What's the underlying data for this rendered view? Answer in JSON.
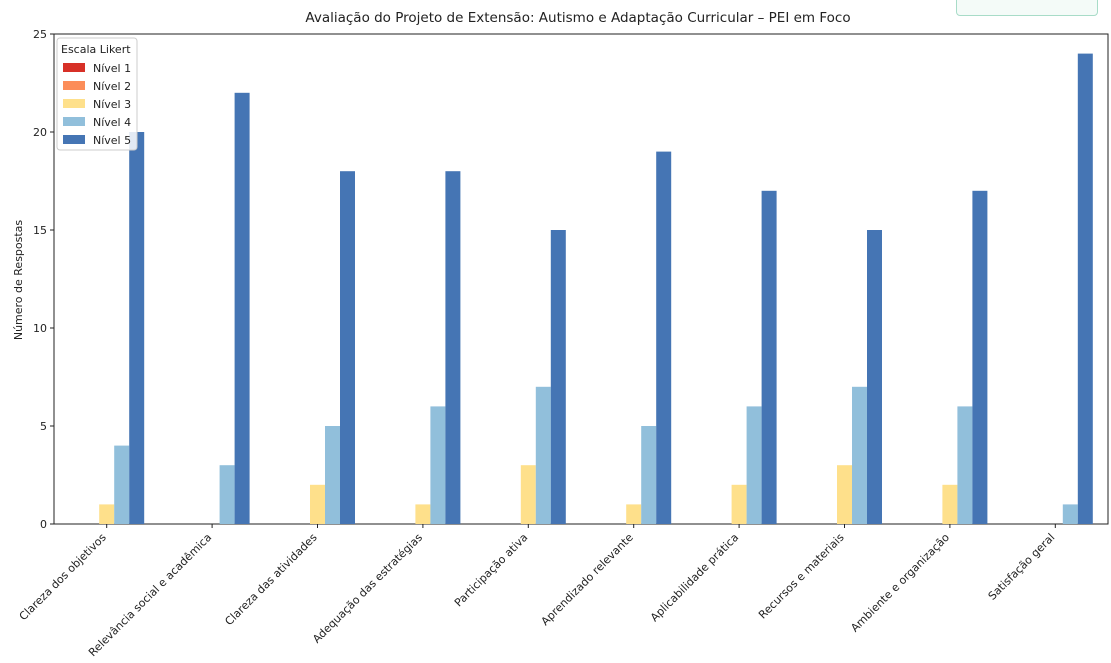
{
  "chart_data": {
    "type": "bar",
    "title": "Avaliação do Projeto de Extensão: Autismo e Adaptação Curricular – PEI em Foco",
    "xlabel": "",
    "ylabel": "Número de Respostas",
    "ylim": [
      0,
      25
    ],
    "yticks": [
      0,
      5,
      10,
      15,
      20,
      25
    ],
    "grid": false,
    "legend_title": "Escala Likert",
    "legend_position": "top-left",
    "categories": [
      "Clareza dos objetivos",
      "Relevância social e acadêmica",
      "Clareza das atividades",
      "Adequação das estratégias",
      "Participação ativa",
      "Aprendizado relevante",
      "Aplicabilidade prática",
      "Recursos e materiais",
      "Ambiente e organização",
      "Satisfação geral"
    ],
    "series": [
      {
        "name": "Nível 1",
        "color": "#d73027",
        "values": [
          0,
          0,
          0,
          0,
          0,
          0,
          0,
          0,
          0,
          0
        ]
      },
      {
        "name": "Nível 2",
        "color": "#fc8d59",
        "values": [
          0,
          0,
          0,
          0,
          0,
          0,
          0,
          0,
          0,
          0
        ]
      },
      {
        "name": "Nível 3",
        "color": "#fee08b",
        "values": [
          1,
          0,
          2,
          1,
          3,
          1,
          2,
          3,
          2,
          0
        ]
      },
      {
        "name": "Nível 4",
        "color": "#91bfdb",
        "values": [
          4,
          3,
          5,
          6,
          7,
          5,
          6,
          7,
          6,
          1
        ]
      },
      {
        "name": "Nível 5",
        "color": "#4575b4",
        "values": [
          20,
          22,
          18,
          18,
          15,
          19,
          17,
          15,
          17,
          24
        ]
      }
    ]
  }
}
